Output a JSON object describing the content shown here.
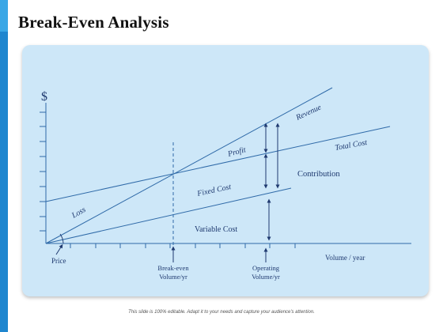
{
  "slide": {
    "title": "Break-Even Analysis",
    "footer": "This slide is 100% editable. Adapt it to your needs and capture your audience's attention.",
    "accent_color": "#1f86cf",
    "panel_color": "#cde7f8",
    "line_color": "#2f6aa8"
  },
  "diagram": {
    "y_axis_symbol": "$",
    "x_axis_label": "Volume / year",
    "lines": {
      "revenue": "Revenue",
      "total_cost": "Total Cost",
      "variable_cost": "Variable Cost"
    },
    "regions": {
      "loss": "Loss",
      "profit": "Profit",
      "fixed_cost": "Fixed Cost",
      "contribution": "Contribution"
    },
    "markers": {
      "price": "Price",
      "break_even_line1": "Break-even",
      "break_even_line2": "Volume/yr",
      "operating_line1": "Operating",
      "operating_line2": "Volume/yr"
    }
  }
}
